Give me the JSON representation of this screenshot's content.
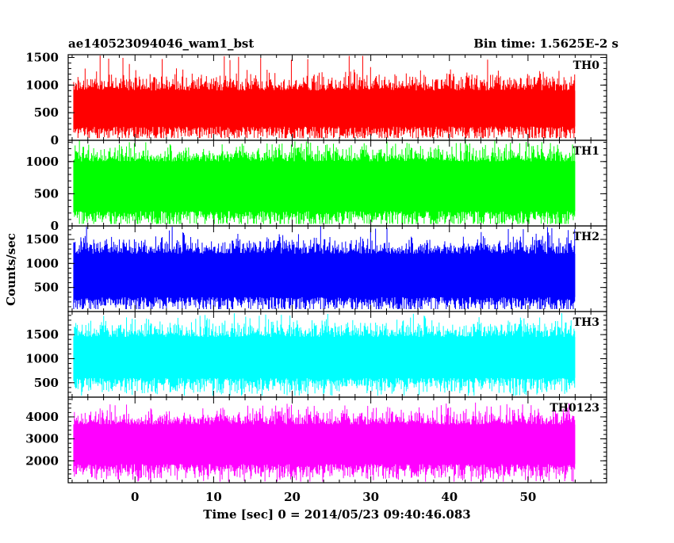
{
  "chart_data": {
    "type": "line",
    "title": "ae140523094046_wam1_bst",
    "subtitle": "Bin time: 1.5625E-2 s",
    "xlabel": "Time [sec] 0 = 2014/05/23 09:40:46.083",
    "ylabel": "Counts/sec",
    "xlim": [
      -8.5,
      60
    ],
    "x_data_range": [
      -7.8,
      56
    ],
    "xticks": [
      0,
      10,
      20,
      30,
      40,
      50
    ],
    "grid": false,
    "legend": "none",
    "panels": [
      {
        "name": "TH0",
        "color": "#ff0000",
        "ylim": [
          0,
          1550
        ],
        "yticks": [
          0,
          500,
          1000,
          1500
        ],
        "mean": 590,
        "min": 40,
        "max": 1550,
        "band_low": 250,
        "band_high": 900
      },
      {
        "name": "TH1",
        "color": "#00ff00",
        "ylim": [
          0,
          1330
        ],
        "yticks": [
          0,
          500,
          1000
        ],
        "mean": 620,
        "min": 30,
        "max": 1330,
        "band_low": 230,
        "band_high": 1000
      },
      {
        "name": "TH2",
        "color": "#0000ff",
        "ylim": [
          0,
          1780
        ],
        "yticks": [
          500,
          1000,
          1500
        ],
        "mean": 760,
        "min": 50,
        "max": 1780,
        "band_low": 300,
        "band_high": 1200
      },
      {
        "name": "TH3",
        "color": "#00ffff",
        "ylim": [
          200,
          1980
        ],
        "yticks": [
          500,
          1000,
          1500
        ],
        "mean": 1010,
        "min": 230,
        "max": 1950,
        "band_low": 600,
        "band_high": 1450
      },
      {
        "name": "TH0123",
        "color": "#ff00ff",
        "ylim": [
          1000,
          4900
        ],
        "yticks": [
          2000,
          3000,
          4000
        ],
        "mean": 2700,
        "min": 1050,
        "max": 4650,
        "band_low": 1850,
        "band_high": 3650
      }
    ]
  }
}
